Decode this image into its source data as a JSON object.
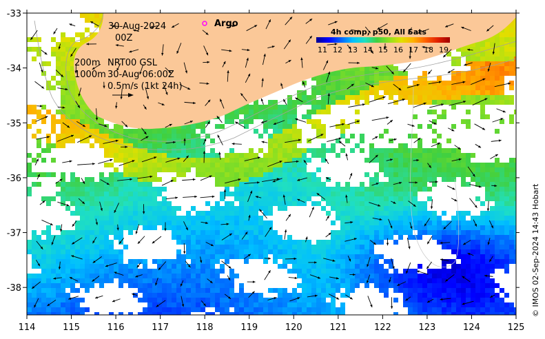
{
  "header": {
    "date": "30-Aug-2024",
    "time": "00Z",
    "platform": "Argo",
    "depth_line1": "200m",
    "product_line1": "NRT00 GSL",
    "depth_line2": "1000m",
    "product_line2": "30-Aug 06:00Z",
    "scale_arrow": "0.5m/s (1kt 24h)"
  },
  "colorbar": {
    "title": "4h comp, p50, All Sats",
    "ticks": [
      "11",
      "12",
      "13",
      "14",
      "15",
      "16",
      "17",
      "18",
      "19"
    ],
    "colors": [
      "#00008f",
      "#0000ff",
      "#0060ff",
      "#00bfff",
      "#20e0c0",
      "#40d040",
      "#90e020",
      "#e0e000",
      "#ffb000",
      "#ff6000",
      "#e02000",
      "#a00000"
    ]
  },
  "axes": {
    "x_ticks": [
      "114",
      "115",
      "116",
      "117",
      "118",
      "119",
      "120",
      "121",
      "122",
      "123",
      "124",
      "125"
    ],
    "y_ticks": [
      "-33",
      "-34",
      "-35",
      "-36",
      "-37",
      "-38"
    ],
    "lon_range": [
      114,
      125
    ],
    "lat_range": [
      -38.5,
      -33
    ]
  },
  "credit": "© IMOS 02-Sep-2024 14:43 Hobart",
  "land_color": "#fbc898",
  "marker_color": "#ff00ff"
}
